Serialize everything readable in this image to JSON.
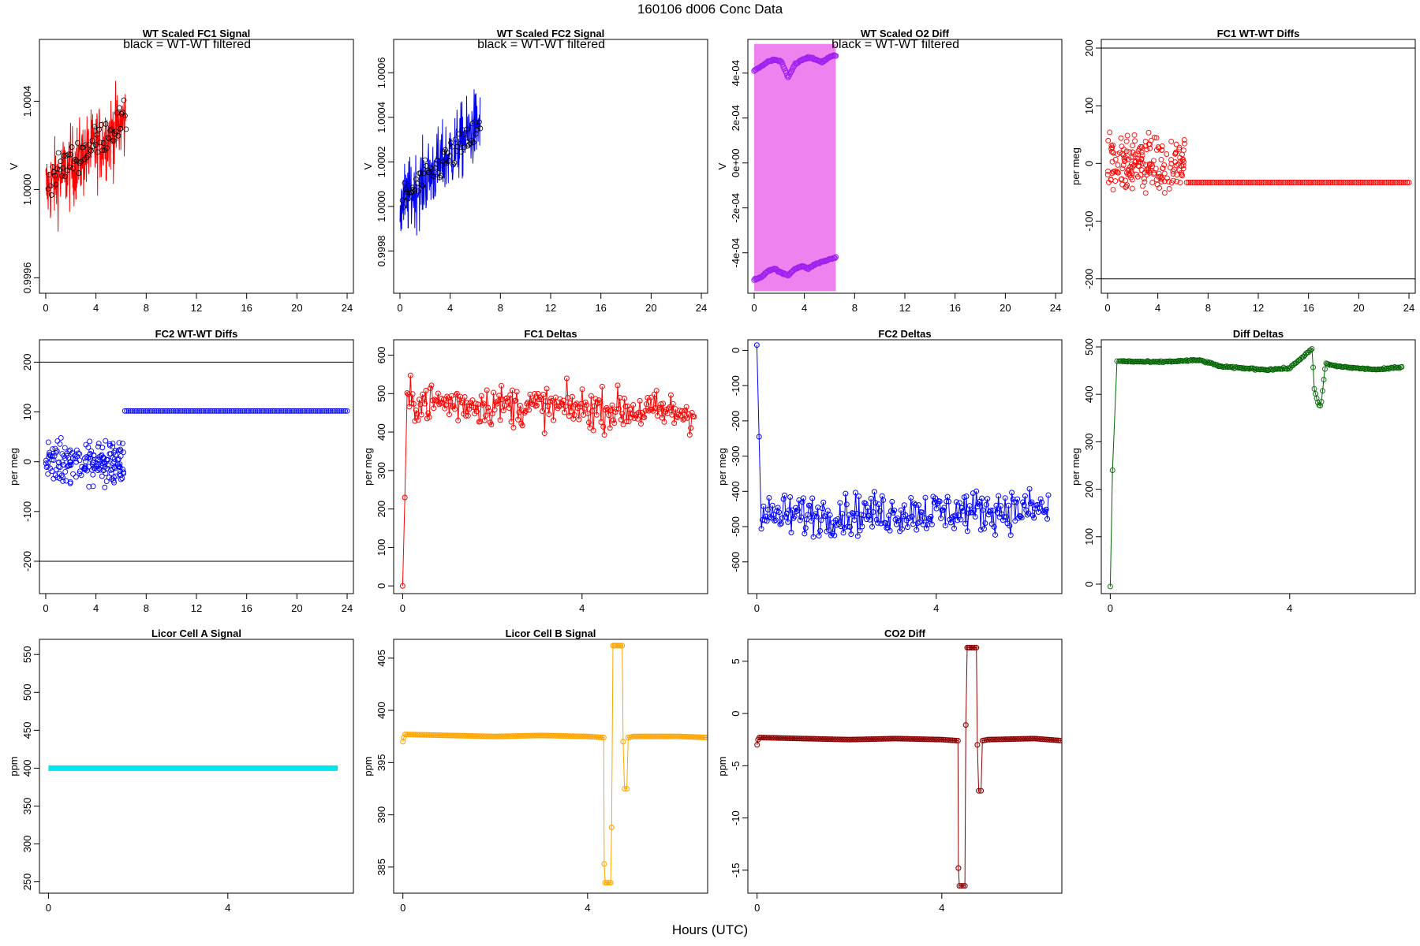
{
  "figure": {
    "title": "160106   d006   Conc Data",
    "xlabel": "Hours (UTC)"
  },
  "chart_data": [
    {
      "type": "line",
      "title": "WT Scaled FC1 Signal",
      "ylabel": "V",
      "annotation": "black = WT-WT filtered",
      "xlim": [
        -0.5,
        24.5
      ],
      "ylim": [
        0.99953,
        1.00068
      ],
      "xticks": [
        "0",
        "4",
        "8",
        "12",
        "16",
        "20",
        "24"
      ],
      "xtick_values": [
        0,
        4,
        8,
        12,
        16,
        20,
        24
      ],
      "yticks": [
        "0.9996",
        "1.0000",
        "1.0004"
      ],
      "ytick_values": [
        0.9996,
        1.0,
        1.0004
      ],
      "series": [
        {
          "color": "#ff0000",
          "style": "noise-band",
          "x_range": [
            0,
            6.4
          ],
          "center_start": 1.0,
          "center_end": 1.00031,
          "spread": 0.00026
        },
        {
          "color": "#000000",
          "style": "points",
          "x_range": [
            0.2,
            6.4
          ],
          "center_start": 1.00005,
          "center_end": 1.00032,
          "spread": 0.00013
        }
      ]
    },
    {
      "type": "line",
      "title": "WT Scaled FC2 Signal",
      "ylabel": "V",
      "annotation": "black = WT-WT filtered",
      "xlim": [
        -0.5,
        24.5
      ],
      "ylim": [
        0.99961,
        1.00075
      ],
      "xticks": [
        "0",
        "4",
        "8",
        "12",
        "16",
        "20",
        "24"
      ],
      "xtick_values": [
        0,
        4,
        8,
        12,
        16,
        20,
        24
      ],
      "yticks": [
        "0.9998",
        "1.0000",
        "1.0002",
        "1.0004",
        "1.0006"
      ],
      "ytick_values": [
        0.9998,
        1.0,
        1.0002,
        1.0004,
        1.0006
      ],
      "series": [
        {
          "color": "#0000ff",
          "style": "noise-band",
          "x_range": [
            0,
            6.4
          ],
          "center_start": 1.0,
          "center_end": 1.00038,
          "spread": 0.00024
        },
        {
          "color": "#000000",
          "style": "points",
          "x_range": [
            0.2,
            6.4
          ],
          "center_start": 1.00003,
          "center_end": 1.00035,
          "spread": 0.00012
        }
      ]
    },
    {
      "type": "line",
      "title": "WT Scaled O2 Diff",
      "ylabel": "V",
      "annotation": "black = WT-WT filtered",
      "xlim": [
        -0.5,
        24.5
      ],
      "ylim": [
        -0.00058,
        0.00055
      ],
      "xticks": [
        "0",
        "4",
        "8",
        "12",
        "16",
        "20",
        "24"
      ],
      "xtick_values": [
        0,
        4,
        8,
        12,
        16,
        20,
        24
      ],
      "yticks": [
        "-4e-04",
        "-2e-04",
        "0e+00",
        "2e-04",
        "4e-04"
      ],
      "ytick_values": [
        -0.0004,
        -0.0002,
        0,
        0.0002,
        0.0004
      ],
      "series": [
        {
          "color": "#ee82ee",
          "style": "band",
          "x_range": [
            0,
            6.5
          ],
          "y_range": [
            -0.00057,
            0.00053
          ]
        },
        {
          "color": "#a020f0",
          "style": "trace",
          "x_range": [
            0,
            6.5
          ],
          "y_values": [
            0.00041,
            0.00043,
            0.00045,
            0.00046,
            0.00045,
            0.00038,
            0.00044,
            0.00046,
            0.00047,
            0.00046,
            0.00045,
            0.00047,
            0.00048
          ]
        },
        {
          "color": "#a020f0",
          "style": "trace",
          "x_range": [
            0,
            6.5
          ],
          "y_values": [
            -0.00052,
            -0.00051,
            -0.00048,
            -0.00047,
            -0.00049,
            -0.0005,
            -0.00047,
            -0.00046,
            -0.00047,
            -0.00045,
            -0.00044,
            -0.00043,
            -0.00042
          ]
        }
      ]
    },
    {
      "type": "scatter",
      "title": "FC1 WT-WT Diffs",
      "ylabel": "per meg",
      "xlim": [
        -0.5,
        24.5
      ],
      "ylim": [
        -225,
        215
      ],
      "xticks": [
        "0",
        "4",
        "8",
        "12",
        "16",
        "20",
        "24"
      ],
      "xtick_values": [
        0,
        4,
        8,
        12,
        16,
        20,
        24
      ],
      "yticks": [
        "-200",
        "-100",
        "0",
        "100",
        "200"
      ],
      "ytick_values": [
        -200,
        -100,
        0,
        100,
        200
      ],
      "hlines": [
        200,
        -200
      ],
      "series": [
        {
          "color": "#ff0000",
          "style": "scatter-cloud",
          "x_range": [
            0,
            6.2
          ],
          "center": 0,
          "spread": 75
        },
        {
          "color": "#ff0000",
          "style": "flat-points",
          "x_range": [
            6.3,
            24
          ],
          "value": -33
        }
      ]
    },
    {
      "type": "scatter",
      "title": "FC2 WT-WT Diffs",
      "ylabel": "per meg",
      "xlim": [
        -0.5,
        24.5
      ],
      "ylim": [
        -265,
        245
      ],
      "xticks": [
        "0",
        "4",
        "8",
        "12",
        "16",
        "20",
        "24"
      ],
      "xtick_values": [
        0,
        4,
        8,
        12,
        16,
        20,
        24
      ],
      "yticks": [
        "-200",
        "-100",
        "0",
        "100",
        "200"
      ],
      "ytick_values": [
        -200,
        -100,
        0,
        100,
        200
      ],
      "hlines": [
        200,
        -200
      ],
      "series": [
        {
          "color": "#0000ff",
          "style": "scatter-cloud",
          "x_range": [
            0,
            6.2
          ],
          "center": 0,
          "spread": 85
        },
        {
          "color": "#0000ff",
          "style": "flat-points",
          "x_range": [
            6.3,
            24
          ],
          "value": 102
        }
      ]
    },
    {
      "type": "line",
      "title": "FC1 Deltas",
      "ylabel": "per meg",
      "xlim": [
        -0.2,
        6.8
      ],
      "ylim": [
        -20,
        640
      ],
      "xticks": [
        "0",
        "4"
      ],
      "xtick_values": [
        0,
        4
      ],
      "yticks": [
        "0",
        "100",
        "200",
        "300",
        "400",
        "500",
        "600"
      ],
      "ytick_values": [
        0,
        100,
        200,
        300,
        400,
        500,
        600
      ],
      "series": [
        {
          "color": "#ff0000",
          "style": "line-points",
          "x_range": [
            0,
            6.5
          ],
          "start": [
            0,
            230
          ],
          "center_start": 480,
          "center_end": 450,
          "spread": 90
        }
      ]
    },
    {
      "type": "line",
      "title": "FC2 Deltas",
      "ylabel": "per meg",
      "xlim": [
        -0.2,
        6.8
      ],
      "ylim": [
        -690,
        30
      ],
      "xticks": [
        "0",
        "4"
      ],
      "xtick_values": [
        0,
        4
      ],
      "yticks": [
        "-600",
        "-500",
        "-400",
        "-300",
        "-200",
        "-100",
        "0"
      ],
      "ytick_values": [
        -600,
        -500,
        -400,
        -300,
        -200,
        -100,
        0
      ],
      "series": [
        {
          "color": "#0000ff",
          "style": "line-points",
          "x_range": [
            0,
            6.5
          ],
          "start": [
            15,
            -245
          ],
          "center_start": -470,
          "center_end": -450,
          "spread": 100
        }
      ]
    },
    {
      "type": "line",
      "title": "Diff Deltas",
      "ylabel": "per meg",
      "xlim": [
        -0.2,
        6.8
      ],
      "ylim": [
        -20,
        515
      ],
      "xticks": [
        "0",
        "4"
      ],
      "xtick_values": [
        0,
        4
      ],
      "yticks": [
        "0",
        "100",
        "200",
        "300",
        "400",
        "500"
      ],
      "ytick_values": [
        0,
        100,
        200,
        300,
        400,
        500
      ],
      "series": [
        {
          "color": "#006400",
          "style": "drift",
          "x_range": [
            0,
            6.5
          ],
          "x": [
            0,
            0.05,
            0.15,
            1,
            2,
            2.5,
            3,
            3.5,
            4,
            4.4,
            4.5,
            4.55,
            4.65,
            4.7,
            4.8,
            5,
            5.5,
            6,
            6.5
          ],
          "y": [
            -5,
            240,
            470,
            468,
            472,
            458,
            455,
            452,
            455,
            488,
            495,
            410,
            375,
            378,
            465,
            460,
            455,
            452,
            458
          ]
        }
      ]
    },
    {
      "type": "line",
      "title": "Licor Cell A Signal",
      "ylabel": "ppm",
      "xlim": [
        -0.2,
        6.8
      ],
      "ylim": [
        235,
        570
      ],
      "xticks": [
        "0",
        "4"
      ],
      "xtick_values": [
        0,
        4
      ],
      "yticks": [
        "250",
        "300",
        "350",
        "400",
        "450",
        "500",
        "550"
      ],
      "ytick_values": [
        250,
        300,
        350,
        400,
        450,
        500,
        550
      ],
      "series": [
        {
          "color": "#00e5ee",
          "style": "flat-band",
          "x_range": [
            0,
            6.45
          ],
          "value": 400,
          "thickness": 3
        }
      ]
    },
    {
      "type": "line",
      "title": "Licor Cell B Signal",
      "ylabel": "ppm",
      "xlim": [
        -0.2,
        6.6
      ],
      "ylim": [
        382.5,
        406.8
      ],
      "xticks": [
        "0",
        "4"
      ],
      "xtick_values": [
        0,
        4
      ],
      "yticks": [
        "385",
        "390",
        "395",
        "400",
        "405"
      ],
      "ytick_values": [
        385,
        390,
        395,
        400,
        405
      ],
      "series": [
        {
          "color": "#ffa500",
          "style": "step",
          "x": [
            0,
            0.02,
            0.05,
            1,
            2,
            3,
            4,
            4.35,
            4.36,
            4.38,
            4.5,
            4.52,
            4.55,
            4.58,
            4.6,
            4.75,
            4.77,
            4.8,
            4.85,
            4.88,
            5,
            6,
            6.6
          ],
          "y": [
            397,
            397.4,
            397.7,
            397.6,
            397.5,
            397.6,
            397.5,
            397.4,
            385.3,
            383.5,
            383.5,
            388.8,
            406.2,
            406.2,
            406.2,
            406.2,
            397,
            392.5,
            392.5,
            397.4,
            397.5,
            397.5,
            397.4
          ]
        }
      ]
    },
    {
      "type": "line",
      "title": "CO2 Diff",
      "ylabel": "ppm",
      "xlim": [
        -0.2,
        6.6
      ],
      "ylim": [
        -17.2,
        7.1
      ],
      "xticks": [
        "0",
        "4"
      ],
      "xtick_values": [
        0,
        4
      ],
      "yticks": [
        "-15",
        "-10",
        "-5",
        "0",
        "5"
      ],
      "ytick_values": [
        -15,
        -10,
        -5,
        0,
        5
      ],
      "series": [
        {
          "color": "#8b0000",
          "style": "step",
          "x": [
            0,
            0.02,
            0.05,
            1,
            2,
            3,
            4,
            4.35,
            4.36,
            4.38,
            4.5,
            4.52,
            4.55,
            4.58,
            4.6,
            4.75,
            4.77,
            4.8,
            4.85,
            4.88,
            5,
            6,
            6.6
          ],
          "y": [
            -3,
            -2.5,
            -2.3,
            -2.4,
            -2.5,
            -2.4,
            -2.5,
            -2.6,
            -14.8,
            -16.5,
            -16.5,
            -1.1,
            6.3,
            6.3,
            6.3,
            6.3,
            -3,
            -7.4,
            -7.4,
            -2.6,
            -2.5,
            -2.4,
            -2.6
          ]
        }
      ]
    }
  ]
}
